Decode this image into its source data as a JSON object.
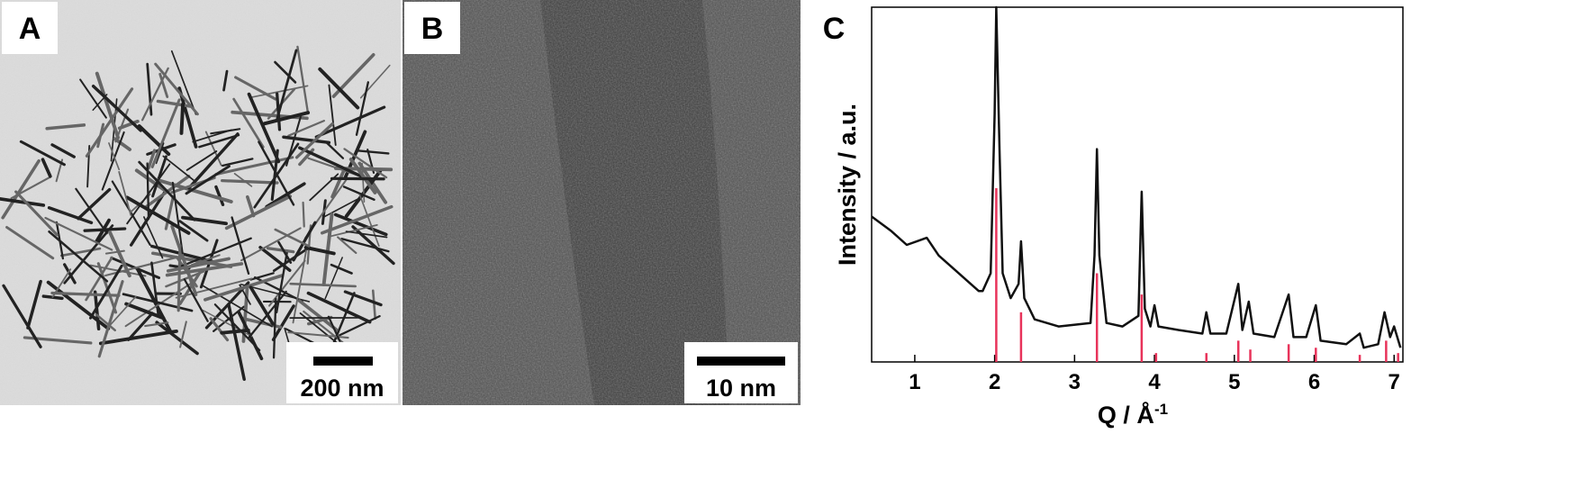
{
  "panels": [
    {
      "label": "A",
      "scale_bar": "200 nm"
    },
    {
      "label": "B",
      "scale_bar": "10 nm"
    }
  ],
  "chart_data": {
    "type": "line",
    "label": "C",
    "xlabel": "Q / Å",
    "xlabel_superscript": "-1",
    "ylabel": "Intensity / a.u.",
    "xlim": [
      0.46,
      7.11
    ],
    "xticks": [
      1,
      2,
      3,
      4,
      5,
      6,
      7
    ],
    "ylim": [
      0,
      100
    ],
    "series": [
      {
        "color": "#111111",
        "x": [
          0.46,
          0.7,
          0.9,
          1.15,
          1.3,
          1.5,
          1.7,
          1.8,
          1.85,
          1.95,
          2.0,
          2.02,
          2.06,
          2.1,
          2.2,
          2.3,
          2.33,
          2.37,
          2.5,
          2.8,
          3.2,
          3.25,
          3.28,
          3.31,
          3.4,
          3.6,
          3.8,
          3.84,
          3.88,
          3.95,
          4.0,
          4.05,
          4.3,
          4.6,
          4.65,
          4.7,
          4.9,
          5.05,
          5.1,
          5.18,
          5.24,
          5.5,
          5.68,
          5.74,
          5.9,
          6.02,
          6.08,
          6.4,
          6.57,
          6.62,
          6.8,
          6.88,
          6.95,
          7.0,
          7.08
        ],
        "values": [
          41,
          37,
          33,
          35,
          30,
          26,
          22,
          20,
          20,
          25,
          70,
          100,
          60,
          25,
          18,
          22,
          34,
          18,
          12,
          10,
          11,
          30,
          60,
          30,
          11,
          10,
          13,
          48,
          15,
          10,
          16,
          10,
          9,
          8,
          14,
          8,
          8,
          22,
          9,
          17,
          8,
          7,
          19,
          7,
          7,
          16,
          6,
          5,
          8,
          4,
          5,
          14,
          7,
          10,
          4
        ]
      }
    ],
    "reference": {
      "color": "#e8335a",
      "x": [
        2.02,
        2.33,
        3.28,
        3.84,
        4.02,
        4.65,
        5.05,
        5.2,
        5.68,
        6.02,
        6.57,
        6.9,
        7.05
      ],
      "values": [
        49,
        14,
        25,
        19,
        2.5,
        2.5,
        6,
        3.5,
        5,
        4,
        2,
        6,
        2.5
      ]
    }
  }
}
